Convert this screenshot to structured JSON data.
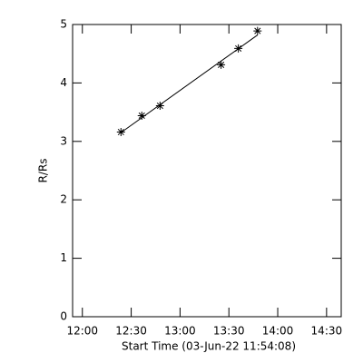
{
  "chart_data": {
    "type": "scatter",
    "x_label": "Start Time (03-Jun-22 11:54:08)",
    "y_label": "R/Rs",
    "x": [
      743.7,
      756.5,
      767.7,
      805.2,
      815.8,
      827.6
    ],
    "series": [
      {
        "values": [
          3.16,
          3.44,
          3.61,
          4.31,
          4.59,
          4.89
        ],
        "color": "#000000"
      }
    ],
    "fit": {
      "x": [
        743.7,
        827.6
      ],
      "values": [
        3.15,
        4.82
      ],
      "color": "#000000"
    },
    "xlim": [
      714,
      879
    ],
    "xticks": [
      {
        "value": 720,
        "label": "12:00"
      },
      {
        "value": 750,
        "label": "12:30"
      },
      {
        "value": 780,
        "label": "13:00"
      },
      {
        "value": 810,
        "label": "13:30"
      },
      {
        "value": 840,
        "label": "14:00"
      },
      {
        "value": 870,
        "label": "14:30"
      }
    ],
    "ylim": [
      0,
      5
    ],
    "yticks": [
      0,
      1,
      2,
      3,
      4,
      5
    ]
  }
}
